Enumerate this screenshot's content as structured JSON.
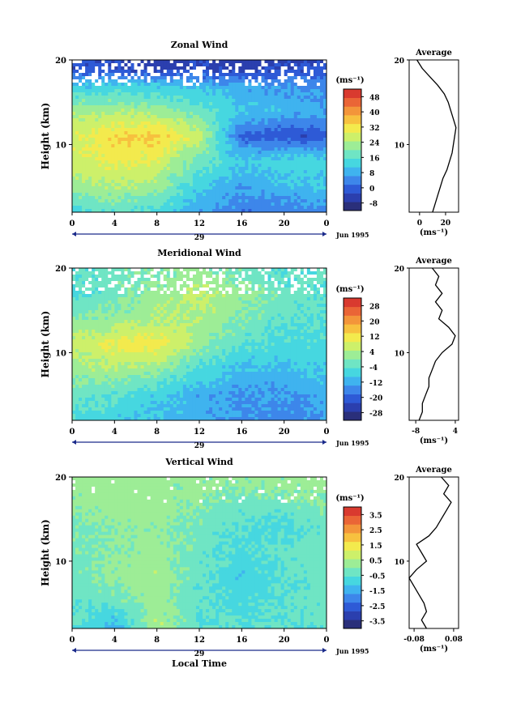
{
  "panels": [
    {
      "title": "Zonal Wind",
      "ylabel": "Height (km)",
      "yticks": [
        "20",
        "10"
      ],
      "xticks": [
        "0",
        "4",
        "8",
        "12",
        "16",
        "20",
        "0"
      ],
      "date_day": "29",
      "date_label": "Jun 1995",
      "xlabel": "",
      "colorbar_unit": "(ms⁻¹)",
      "colorbar_ticks": [
        "48",
        "40",
        "32",
        "24",
        "16",
        "8",
        "0",
        "-8"
      ],
      "avg_title": "Average",
      "avg_yticks": [
        "20",
        "10"
      ],
      "avg_xticks": [
        "0",
        "20"
      ],
      "avg_xlabel": "(ms⁻¹)"
    },
    {
      "title": "Meridional Wind",
      "ylabel": "Height (km)",
      "yticks": [
        "20",
        "10"
      ],
      "xticks": [
        "0",
        "4",
        "8",
        "12",
        "16",
        "20",
        "0"
      ],
      "date_day": "29",
      "date_label": "Jun 1995",
      "xlabel": "",
      "colorbar_unit": "(ms⁻¹)",
      "colorbar_ticks": [
        "28",
        "20",
        "12",
        "4",
        "-4",
        "-12",
        "-20",
        "-28"
      ],
      "avg_title": "Average",
      "avg_yticks": [
        "20",
        "10"
      ],
      "avg_xticks": [
        "-8",
        "4"
      ],
      "avg_xlabel": "(ms⁻¹)"
    },
    {
      "title": "Vertical Wind",
      "ylabel": "Height (km)",
      "yticks": [
        "20",
        "10"
      ],
      "xticks": [
        "0",
        "4",
        "8",
        "12",
        "16",
        "20",
        "0"
      ],
      "date_day": "29",
      "date_label": "Jun 1995",
      "xlabel": "Local Time",
      "colorbar_unit": "(ms⁻¹)",
      "colorbar_ticks": [
        "3.5",
        "2.5",
        "1.5",
        "0.5",
        "-0.5",
        "-1.5",
        "-2.5",
        "-3.5"
      ],
      "avg_title": "Average",
      "avg_yticks": [
        "20",
        "10"
      ],
      "avg_xticks": [
        "-0.08",
        "0.08"
      ],
      "avg_xlabel": "(ms⁻¹)"
    }
  ],
  "colors": {
    "colorbar": [
      "#2a2f7a",
      "#2b3fae",
      "#2e5ad6",
      "#3d86ea",
      "#3fb3ef",
      "#46d7e0",
      "#6fe5c4",
      "#9ded96",
      "#cdf06a",
      "#f3ea4d",
      "#f7c13f",
      "#f3953a",
      "#ea6536",
      "#d93a2f"
    ],
    "contour": "#000000",
    "missing": "#ffffff"
  },
  "chart_data": [
    {
      "type": "heatmap",
      "title": "Zonal Wind",
      "x_axis": "local time (h)",
      "xlim": [
        0,
        24
      ],
      "ylim": [
        2,
        20
      ],
      "ylabel": "Height (km)",
      "clim": [
        -8,
        52
      ],
      "x": [
        0,
        4,
        8,
        12,
        16,
        20,
        24
      ],
      "y": [
        2,
        5,
        8,
        11,
        14,
        17,
        19
      ],
      "z": [
        [
          16,
          18,
          16,
          10,
          6,
          6,
          8
        ],
        [
          24,
          26,
          24,
          14,
          10,
          12,
          14
        ],
        [
          28,
          32,
          30,
          20,
          14,
          16,
          16
        ],
        [
          30,
          34,
          36,
          28,
          4,
          2,
          2
        ],
        [
          24,
          26,
          24,
          20,
          14,
          12,
          10
        ],
        [
          14,
          14,
          14,
          12,
          10,
          8,
          8
        ],
        [
          2,
          0,
          -2,
          0,
          -2,
          0,
          2
        ]
      ],
      "average_profile": {
        "xlim": [
          -8,
          30
        ],
        "height": [
          2,
          3,
          4,
          5,
          6,
          7,
          8,
          9,
          10,
          11,
          12,
          13,
          14,
          15,
          16,
          17,
          18,
          19,
          20
        ],
        "value": [
          10,
          12,
          14,
          16,
          18,
          21,
          23,
          25,
          26,
          27,
          28,
          26,
          24,
          22,
          19,
          14,
          8,
          2,
          -2
        ]
      }
    },
    {
      "type": "heatmap",
      "title": "Meridional Wind",
      "x_axis": "local time (h)",
      "xlim": [
        0,
        24
      ],
      "ylim": [
        2,
        20
      ],
      "ylabel": "Height (km)",
      "clim": [
        -32,
        32
      ],
      "x": [
        0,
        4,
        8,
        12,
        16,
        20,
        24
      ],
      "y": [
        2,
        5,
        8,
        11,
        14,
        17,
        19
      ],
      "z": [
        [
          -6,
          -8,
          -10,
          -12,
          -14,
          -16,
          -14
        ],
        [
          -2,
          -4,
          -8,
          -12,
          -14,
          -14,
          -12
        ],
        [
          2,
          4,
          2,
          -6,
          -10,
          -10,
          -8
        ],
        [
          6,
          10,
          12,
          2,
          -4,
          -6,
          -6
        ],
        [
          0,
          2,
          4,
          4,
          0,
          -4,
          -4
        ],
        [
          -6,
          -2,
          2,
          6,
          2,
          -2,
          -4
        ],
        [
          -4,
          -2,
          0,
          2,
          -2,
          -4,
          -4
        ]
      ],
      "average_profile": {
        "xlim": [
          -10,
          5
        ],
        "height": [
          2,
          3,
          4,
          5,
          6,
          7,
          8,
          9,
          10,
          11,
          12,
          13,
          14,
          15,
          16,
          17,
          18,
          19,
          20
        ],
        "value": [
          -7,
          -6,
          -6,
          -5,
          -4,
          -4,
          -3,
          -2,
          0,
          3,
          4,
          2,
          -1,
          0,
          -2,
          0,
          -2,
          -1,
          -3
        ]
      }
    },
    {
      "type": "heatmap",
      "title": "Vertical Wind",
      "x_axis": "local time (h)",
      "xlabel": "Local Time",
      "xlim": [
        0,
        24
      ],
      "ylim": [
        2,
        20
      ],
      "ylabel": "Height (km)",
      "clim": [
        -4,
        4
      ],
      "x": [
        0,
        4,
        8,
        12,
        16,
        20,
        24
      ],
      "y": [
        2,
        5,
        8,
        11,
        14,
        17,
        19
      ],
      "z": [
        [
          -0.5,
          -1.5,
          0.5,
          -0.5,
          -0.5,
          -0.5,
          -0.5
        ],
        [
          -0.5,
          -0.3,
          0.3,
          -0.5,
          -0.8,
          -0.5,
          -0.3
        ],
        [
          -0.3,
          0.2,
          0.4,
          -0.4,
          -1.0,
          -0.6,
          -0.3
        ],
        [
          -0.2,
          0.1,
          0.3,
          -0.3,
          -0.8,
          -0.4,
          -0.2
        ],
        [
          -0.2,
          0.1,
          0.2,
          -0.2,
          -0.6,
          -0.8,
          -0.3
        ],
        [
          0.2,
          0.3,
          0.3,
          0.0,
          -0.3,
          -0.2,
          0.1
        ],
        [
          0.2,
          0.3,
          0.2,
          0.2,
          0.1,
          0.2,
          0.2
        ]
      ],
      "average_profile": {
        "xlim": [
          -0.1,
          0.1
        ],
        "height": [
          2,
          3,
          4,
          5,
          6,
          7,
          8,
          9,
          10,
          11,
          12,
          13,
          14,
          15,
          16,
          17,
          18,
          19,
          20
        ],
        "value": [
          -0.03,
          -0.05,
          -0.03,
          -0.04,
          -0.06,
          -0.08,
          -0.1,
          -0.07,
          -0.03,
          -0.05,
          -0.07,
          -0.02,
          0.01,
          0.03,
          0.05,
          0.07,
          0.04,
          0.06,
          0.03
        ]
      }
    }
  ]
}
